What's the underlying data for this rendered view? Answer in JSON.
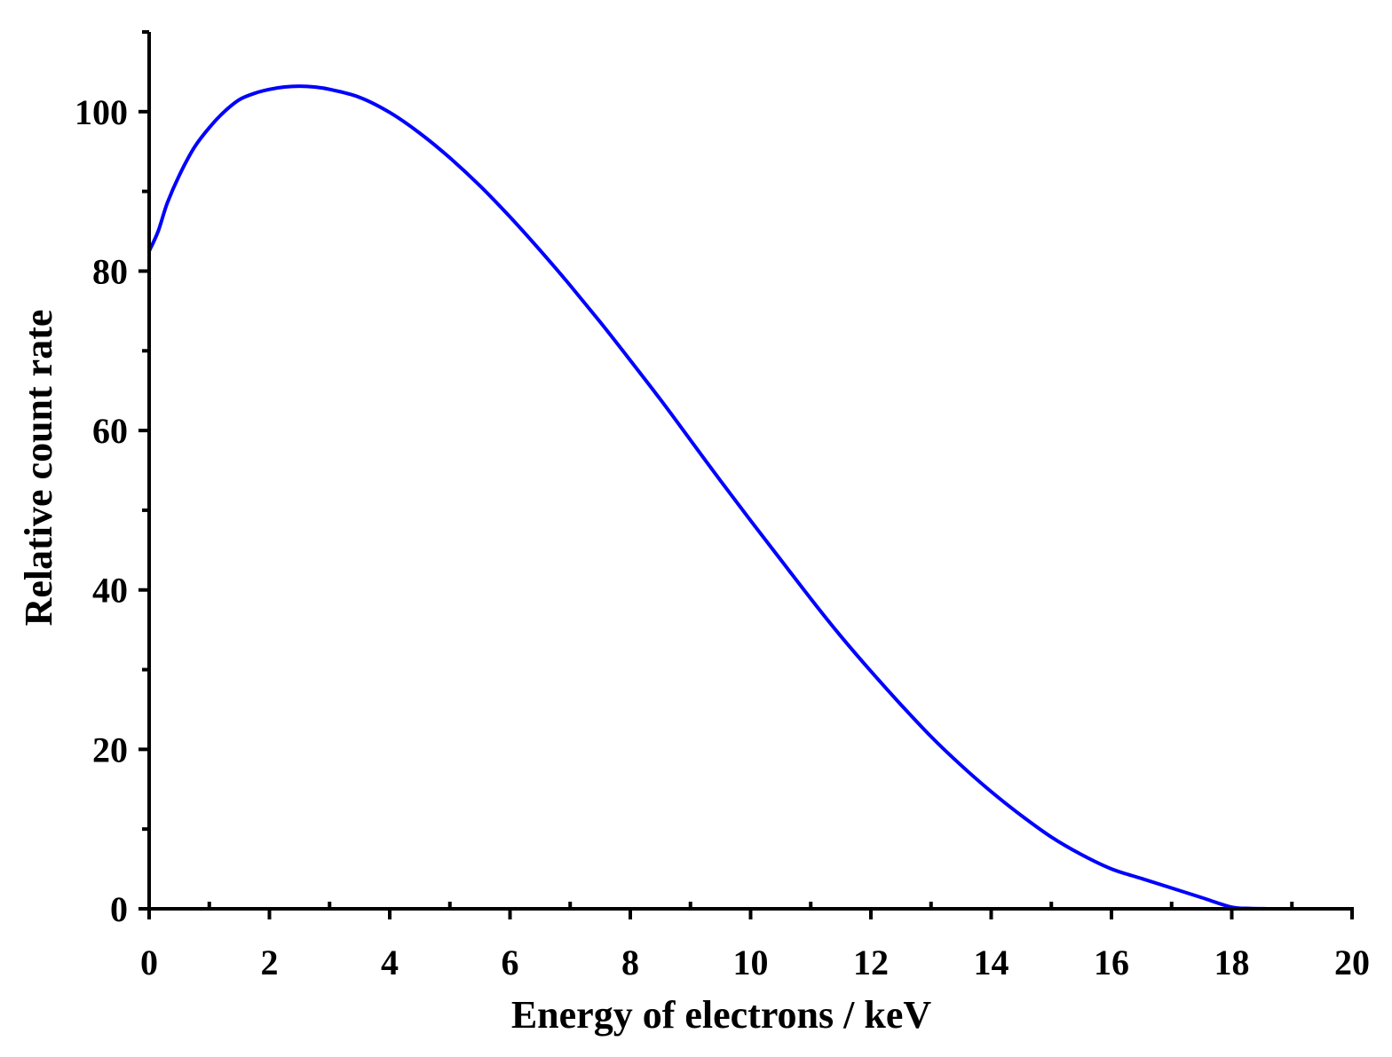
{
  "chart_data": {
    "type": "line",
    "title": "",
    "xlabel": "Energy of electrons / keV",
    "ylabel": "Relative count rate",
    "xlim": [
      0,
      20
    ],
    "ylim": [
      0,
      110
    ],
    "x_ticks": [
      "0",
      "2",
      "4",
      "6",
      "8",
      "10",
      "12",
      "14",
      "16",
      "18",
      "20"
    ],
    "y_ticks": [
      "0",
      "20",
      "40",
      "60",
      "80",
      "100"
    ],
    "x_minor_step": 1,
    "y_minor_step": 10,
    "grid": false,
    "legend": "none",
    "series": [
      {
        "color": "#0000ff",
        "x": [
          0,
          0.15,
          0.3,
          0.5,
          0.75,
          1.0,
          1.25,
          1.5,
          1.75,
          2.0,
          2.25,
          2.5,
          2.75,
          3.0,
          3.5,
          4.0,
          4.5,
          5.0,
          5.5,
          6.0,
          6.5,
          7.0,
          7.5,
          8.0,
          8.5,
          9.0,
          9.5,
          10.0,
          10.5,
          11.0,
          11.5,
          12.0,
          12.5,
          13.0,
          13.5,
          14.0,
          14.5,
          15.0,
          15.5,
          16.0,
          16.5,
          17.0,
          17.5,
          18.0,
          18.3,
          18.6
        ],
        "y": [
          82.5,
          85.0,
          88.5,
          92.0,
          95.5,
          98.0,
          100.0,
          101.5,
          102.3,
          102.8,
          103.1,
          103.2,
          103.1,
          102.8,
          101.8,
          99.9,
          97.3,
          94.2,
          90.7,
          86.8,
          82.6,
          78.2,
          73.6,
          68.8,
          63.9,
          58.8,
          53.7,
          48.7,
          43.8,
          38.9,
          34.2,
          29.8,
          25.6,
          21.6,
          18.0,
          14.7,
          11.7,
          9.0,
          6.8,
          5.0,
          3.8,
          2.6,
          1.4,
          0.2,
          0.05,
          0.0
        ]
      }
    ]
  }
}
